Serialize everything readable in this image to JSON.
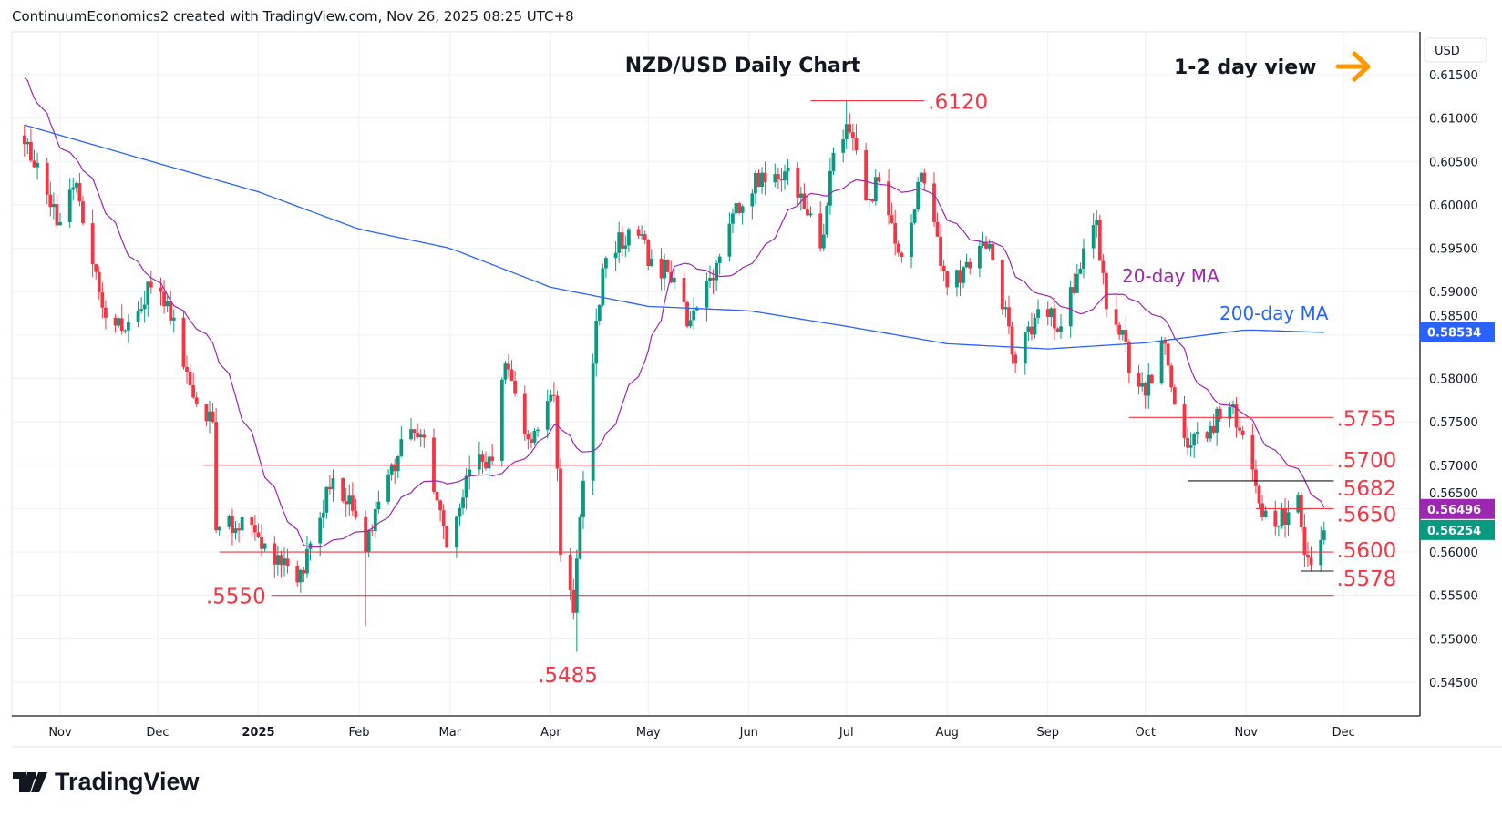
{
  "header": {
    "credit": "ContinuumEconomics2 created with TradingView.com, Nov 26, 2025 08:25 UTC+8"
  },
  "brand": {
    "name": "TradingView"
  },
  "chart_data": {
    "type": "candlestick",
    "title": "NZD/USD Daily Chart",
    "view_label": "1-2 day view",
    "currency_label": "USD",
    "ylim": [
      0.542,
      0.6185
    ],
    "y_ticks": [
      "0.61500",
      "0.61000",
      "0.60500",
      "0.60000",
      "0.59500",
      "0.59000",
      "0.58500",
      "0.58000",
      "0.57500",
      "0.57000",
      "0.56500",
      "0.56000",
      "0.55500",
      "0.55000",
      "0.54500"
    ],
    "x_range": [
      "2024-10-21",
      "2025-12-31"
    ],
    "x_ticks": [
      {
        "date": "2024-11-01",
        "label": "Nov"
      },
      {
        "date": "2024-12-01",
        "label": "Dec"
      },
      {
        "date": "2025-01-01",
        "label": "2025"
      },
      {
        "date": "2025-02-01",
        "label": "Feb"
      },
      {
        "date": "2025-03-01",
        "label": "Mar"
      },
      {
        "date": "2025-04-01",
        "label": "Apr"
      },
      {
        "date": "2025-05-01",
        "label": "May"
      },
      {
        "date": "2025-06-01",
        "label": "Jun"
      },
      {
        "date": "2025-07-01",
        "label": "Jul"
      },
      {
        "date": "2025-08-01",
        "label": "Aug"
      },
      {
        "date": "2025-09-01",
        "label": "Sep"
      },
      {
        "date": "2025-10-01",
        "label": "Oct"
      },
      {
        "date": "2025-11-01",
        "label": "Nov"
      },
      {
        "date": "2025-12-01",
        "label": "Dec"
      }
    ],
    "close_path": [
      [
        "2024-10-21",
        0.607
      ],
      [
        "2024-11-01",
        0.598
      ],
      [
        "2024-11-06",
        0.6025
      ],
      [
        "2024-11-15",
        0.587
      ],
      [
        "2024-11-22",
        0.5865
      ],
      [
        "2024-11-29",
        0.5905
      ],
      [
        "2024-12-06",
        0.587
      ],
      [
        "2024-12-13",
        0.577
      ],
      [
        "2024-12-18",
        0.575
      ],
      [
        "2024-12-19",
        0.5625
      ],
      [
        "2024-12-27",
        0.564
      ],
      [
        "2025-01-03",
        0.561
      ],
      [
        "2025-01-13",
        0.5565
      ],
      [
        "2025-01-17",
        0.561
      ],
      [
        "2025-01-24",
        0.5685
      ],
      [
        "2025-01-31",
        0.564
      ],
      [
        "2025-02-03",
        0.56
      ],
      [
        "2025-02-14",
        0.573
      ],
      [
        "2025-02-20",
        0.5735
      ],
      [
        "2025-02-28",
        0.5605
      ],
      [
        "2025-03-07",
        0.5695
      ],
      [
        "2025-03-14",
        0.5705
      ],
      [
        "2025-03-18",
        0.5817
      ],
      [
        "2025-03-25",
        0.573
      ],
      [
        "2025-04-02",
        0.578
      ],
      [
        "2025-04-04",
        0.5597
      ],
      [
        "2025-04-08",
        0.553
      ],
      [
        "2025-04-10",
        0.564
      ],
      [
        "2025-04-14",
        0.5817
      ],
      [
        "2025-04-17",
        0.5927
      ],
      [
        "2025-04-25",
        0.5972
      ],
      [
        "2025-05-02",
        0.5938
      ],
      [
        "2025-05-09",
        0.5916
      ],
      [
        "2025-05-13",
        0.586
      ],
      [
        "2025-05-20",
        0.5916
      ],
      [
        "2025-05-27",
        0.599
      ],
      [
        "2025-06-05",
        0.6037
      ],
      [
        "2025-06-13",
        0.6043
      ],
      [
        "2025-06-20",
        0.599
      ],
      [
        "2025-06-23",
        0.595
      ],
      [
        "2025-06-27",
        0.606
      ],
      [
        "2025-07-01",
        0.6093
      ],
      [
        "2025-07-07",
        0.6005
      ],
      [
        "2025-07-11",
        0.6027
      ],
      [
        "2025-07-18",
        0.594
      ],
      [
        "2025-07-24",
        0.6037
      ],
      [
        "2025-08-01",
        0.5905
      ],
      [
        "2025-08-08",
        0.5927
      ],
      [
        "2025-08-14",
        0.5955
      ],
      [
        "2025-08-20",
        0.586
      ],
      [
        "2025-08-22",
        0.5817
      ],
      [
        "2025-08-29",
        0.588
      ],
      [
        "2025-09-05",
        0.586
      ],
      [
        "2025-09-12",
        0.595
      ],
      [
        "2025-09-16",
        0.5983
      ],
      [
        "2025-09-19",
        0.588
      ],
      [
        "2025-09-24",
        0.5856
      ],
      [
        "2025-09-26",
        0.5806
      ],
      [
        "2025-10-01",
        0.578
      ],
      [
        "2025-10-07",
        0.584
      ],
      [
        "2025-10-10",
        0.577
      ],
      [
        "2025-10-14",
        0.572
      ],
      [
        "2025-10-21",
        0.5745
      ],
      [
        "2025-10-28",
        0.577
      ],
      [
        "2025-10-30",
        0.574
      ],
      [
        "2025-11-03",
        0.5695
      ],
      [
        "2025-11-06",
        0.564
      ],
      [
        "2025-11-11",
        0.563
      ],
      [
        "2025-11-17",
        0.5665
      ],
      [
        "2025-11-19",
        0.5597
      ],
      [
        "2025-11-21",
        0.5585
      ],
      [
        "2025-11-25",
        0.5625
      ]
    ],
    "extremes": [
      [
        "2025-04-09",
        "low",
        0.5485
      ],
      [
        "2025-07-01",
        "high",
        0.612
      ],
      [
        "2025-02-03",
        "low",
        0.5515
      ],
      [
        "2025-11-21",
        "low",
        0.5578
      ]
    ],
    "ma200_path": [
      [
        "2024-10-21",
        0.6092
      ],
      [
        "2024-12-01",
        0.6048
      ],
      [
        "2025-01-01",
        0.6015
      ],
      [
        "2025-02-01",
        0.5972
      ],
      [
        "2025-03-01",
        0.595
      ],
      [
        "2025-04-01",
        0.5905
      ],
      [
        "2025-05-01",
        0.5883
      ],
      [
        "2025-06-01",
        0.5878
      ],
      [
        "2025-07-01",
        0.586
      ],
      [
        "2025-08-01",
        0.584
      ],
      [
        "2025-09-01",
        0.5834
      ],
      [
        "2025-10-01",
        0.5841
      ],
      [
        "2025-11-01",
        0.5856
      ],
      [
        "2025-11-25",
        0.5853
      ]
    ],
    "series": [
      {
        "name": "20-day MA",
        "color": "#9c27b0",
        "last": "0.56496"
      },
      {
        "name": "200-day MA",
        "color": "#2962ff",
        "last": "0.58534"
      },
      {
        "name": "NZD/USD",
        "color": "#089981",
        "last": "0.56254"
      }
    ],
    "levels": [
      {
        "label": ".6120",
        "value": 0.612,
        "from": "2025-06-20",
        "to": "2025-07-25",
        "color": "#f23645"
      },
      {
        "label": ".5755",
        "value": 0.5755,
        "from": "2025-09-26",
        "to": "2025-11-28",
        "color": "#f23645"
      },
      {
        "label": ".5700",
        "value": 0.57,
        "from": "2024-12-15",
        "to": "2025-11-28",
        "color": "#f23645"
      },
      {
        "label": ".5682",
        "value": 0.5682,
        "from": "2025-10-14",
        "to": "2025-11-28",
        "color": "#131722"
      },
      {
        "label": ".5650",
        "value": 0.565,
        "from": "2025-11-04",
        "to": "2025-11-28",
        "color": "#f23645"
      },
      {
        "label": ".5600",
        "value": 0.56,
        "from": "2024-12-20",
        "to": "2025-11-28",
        "color": "#f23645"
      },
      {
        "label": ".5578",
        "value": 0.5578,
        "from": "2025-11-18",
        "to": "2025-11-28",
        "color": "#131722"
      },
      {
        "label": ".5550",
        "value": 0.555,
        "from": "2025-01-05",
        "to": "2025-11-28",
        "color": "#f23645"
      }
    ],
    "low_label": ".5485",
    "colors": {
      "up": "#089981",
      "down": "#f23645",
      "accent": "#ff9800",
      "grid": "#eef1f5"
    }
  }
}
